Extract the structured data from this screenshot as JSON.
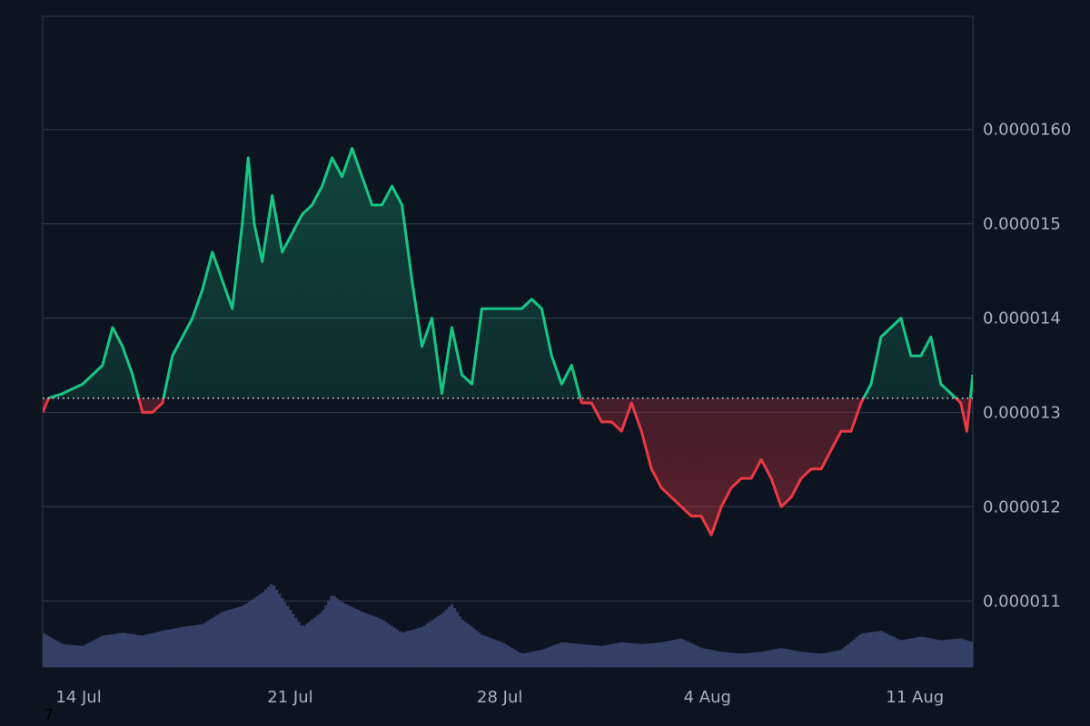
{
  "chart_data": {
    "type": "area",
    "x_unit": "date",
    "x_ticks": [
      "14 Jul",
      "21 Jul",
      "28 Jul",
      "4 Aug",
      "11 Aug"
    ],
    "y_ticks": [
      "0.000011",
      "0.000012",
      "0.000013",
      "0.000014",
      "0.000015",
      "0.0000160"
    ],
    "y_range": [
      1.03e-05,
      1.72e-05
    ],
    "baseline": 1.315e-05,
    "grid": true,
    "legend": "none",
    "colors": {
      "background": "#0d1421",
      "grid": "#2b3446",
      "up_line": "#16c784",
      "down_line": "#ea3943",
      "volume": "#3b4770",
      "baseline": "#cfd6e4"
    },
    "series": [
      {
        "values": [
          [
            0.0,
            1.3e-05
          ],
          [
            0.3,
            1.315e-05
          ],
          [
            1.0,
            1.32e-05
          ],
          [
            2.0,
            1.33e-05
          ],
          [
            2.5,
            1.34e-05
          ],
          [
            3.0,
            1.35e-05
          ],
          [
            3.5,
            1.39e-05
          ],
          [
            4.0,
            1.37e-05
          ],
          [
            4.5,
            1.34e-05
          ],
          [
            5.0,
            1.3e-05
          ],
          [
            5.5,
            1.3e-05
          ],
          [
            6.0,
            1.31e-05
          ],
          [
            6.5,
            1.36e-05
          ],
          [
            7.0,
            1.38e-05
          ],
          [
            7.5,
            1.4e-05
          ],
          [
            8.0,
            1.43e-05
          ],
          [
            8.5,
            1.47e-05
          ],
          [
            9.0,
            1.44e-05
          ],
          [
            9.5,
            1.41e-05
          ],
          [
            10.0,
            1.5e-05
          ],
          [
            10.3,
            1.57e-05
          ],
          [
            10.6,
            1.5e-05
          ],
          [
            11.0,
            1.46e-05
          ],
          [
            11.5,
            1.53e-05
          ],
          [
            12.0,
            1.47e-05
          ],
          [
            12.5,
            1.49e-05
          ],
          [
            13.0,
            1.51e-05
          ],
          [
            13.5,
            1.52e-05
          ],
          [
            14.0,
            1.54e-05
          ],
          [
            14.5,
            1.57e-05
          ],
          [
            15.0,
            1.55e-05
          ],
          [
            15.5,
            1.58e-05
          ],
          [
            16.0,
            1.55e-05
          ],
          [
            16.5,
            1.52e-05
          ],
          [
            17.0,
            1.52e-05
          ],
          [
            17.5,
            1.54e-05
          ],
          [
            18.0,
            1.52e-05
          ],
          [
            18.5,
            1.44e-05
          ],
          [
            19.0,
            1.37e-05
          ],
          [
            19.5,
            1.4e-05
          ],
          [
            20.0,
            1.32e-05
          ],
          [
            20.5,
            1.39e-05
          ],
          [
            21.0,
            1.34e-05
          ],
          [
            21.5,
            1.33e-05
          ],
          [
            22.0,
            1.41e-05
          ],
          [
            22.5,
            1.41e-05
          ],
          [
            23.0,
            1.41e-05
          ],
          [
            23.5,
            1.41e-05
          ],
          [
            24.0,
            1.41e-05
          ],
          [
            24.5,
            1.42e-05
          ],
          [
            25.0,
            1.41e-05
          ],
          [
            25.5,
            1.36e-05
          ],
          [
            26.0,
            1.33e-05
          ],
          [
            26.5,
            1.35e-05
          ],
          [
            27.0,
            1.31e-05
          ],
          [
            27.5,
            1.31e-05
          ],
          [
            28.0,
            1.29e-05
          ],
          [
            28.5,
            1.29e-05
          ],
          [
            29.0,
            1.28e-05
          ],
          [
            29.5,
            1.31e-05
          ],
          [
            30.0,
            1.28e-05
          ],
          [
            30.5,
            1.24e-05
          ],
          [
            31.0,
            1.22e-05
          ],
          [
            31.5,
            1.21e-05
          ],
          [
            32.0,
            1.2e-05
          ],
          [
            32.5,
            1.19e-05
          ],
          [
            33.0,
            1.19e-05
          ],
          [
            33.5,
            1.17e-05
          ],
          [
            34.0,
            1.2e-05
          ],
          [
            34.5,
            1.22e-05
          ],
          [
            35.0,
            1.23e-05
          ],
          [
            35.5,
            1.23e-05
          ],
          [
            36.0,
            1.25e-05
          ],
          [
            36.5,
            1.23e-05
          ],
          [
            37.0,
            1.2e-05
          ],
          [
            37.5,
            1.21e-05
          ],
          [
            38.0,
            1.23e-05
          ],
          [
            38.5,
            1.24e-05
          ],
          [
            39.0,
            1.24e-05
          ],
          [
            39.5,
            1.26e-05
          ],
          [
            40.0,
            1.28e-05
          ],
          [
            40.5,
            1.28e-05
          ],
          [
            41.0,
            1.31e-05
          ],
          [
            41.5,
            1.33e-05
          ],
          [
            42.0,
            1.38e-05
          ],
          [
            42.5,
            1.39e-05
          ],
          [
            43.0,
            1.4e-05
          ],
          [
            43.5,
            1.36e-05
          ],
          [
            44.0,
            1.36e-05
          ],
          [
            44.5,
            1.38e-05
          ],
          [
            45.0,
            1.33e-05
          ],
          [
            45.5,
            1.32e-05
          ],
          [
            46.0,
            1.31e-05
          ],
          [
            46.3,
            1.28e-05
          ],
          [
            46.6,
            1.34e-05
          ]
        ]
      }
    ],
    "volume": [
      [
        0.0,
        0.36
      ],
      [
        1.0,
        0.24
      ],
      [
        2.0,
        0.22
      ],
      [
        3.0,
        0.33
      ],
      [
        4.0,
        0.36
      ],
      [
        5.0,
        0.33
      ],
      [
        6.0,
        0.38
      ],
      [
        7.0,
        0.42
      ],
      [
        8.0,
        0.45
      ],
      [
        9.0,
        0.58
      ],
      [
        10.0,
        0.64
      ],
      [
        11.0,
        0.78
      ],
      [
        11.5,
        0.88
      ],
      [
        12.0,
        0.72
      ],
      [
        13.0,
        0.42
      ],
      [
        14.0,
        0.58
      ],
      [
        14.5,
        0.76
      ],
      [
        15.0,
        0.68
      ],
      [
        16.0,
        0.58
      ],
      [
        17.0,
        0.5
      ],
      [
        18.0,
        0.36
      ],
      [
        19.0,
        0.42
      ],
      [
        20.0,
        0.56
      ],
      [
        20.5,
        0.66
      ],
      [
        21.0,
        0.5
      ],
      [
        22.0,
        0.34
      ],
      [
        23.0,
        0.26
      ],
      [
        24.0,
        0.14
      ],
      [
        25.0,
        0.18
      ],
      [
        26.0,
        0.26
      ],
      [
        27.0,
        0.24
      ],
      [
        28.0,
        0.22
      ],
      [
        29.0,
        0.26
      ],
      [
        30.0,
        0.24
      ],
      [
        31.0,
        0.26
      ],
      [
        32.0,
        0.3
      ],
      [
        33.0,
        0.2
      ],
      [
        34.0,
        0.16
      ],
      [
        35.0,
        0.14
      ],
      [
        36.0,
        0.16
      ],
      [
        37.0,
        0.2
      ],
      [
        38.0,
        0.16
      ],
      [
        39.0,
        0.14
      ],
      [
        40.0,
        0.18
      ],
      [
        41.0,
        0.35
      ],
      [
        42.0,
        0.38
      ],
      [
        43.0,
        0.28
      ],
      [
        44.0,
        0.32
      ],
      [
        45.0,
        0.28
      ],
      [
        46.0,
        0.3
      ],
      [
        46.6,
        0.26
      ]
    ]
  },
  "footer": {
    "corner_text": "7"
  }
}
